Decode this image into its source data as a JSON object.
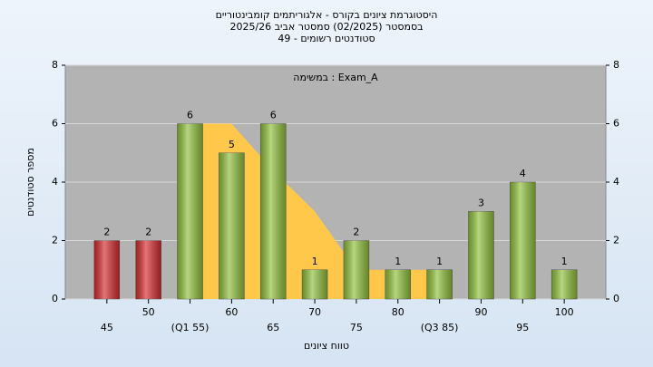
{
  "chart_data": {
    "type": "bar",
    "title": "היסטוגרמת ציונים בקורס - אלגוריתמים קומבינטוריים",
    "subtitle": "בסמסטר  (02/2025)  סמסטר אביב 2025/26",
    "subtitle2": "סטודנטים רשומים - 49",
    "annotation": "במשימה : Exam_A",
    "x_label": "טווח ציונים",
    "y_label": "מספר סטודנטים",
    "categories": [
      "45",
      "50",
      "(Q1 55)",
      "60",
      "65",
      "70",
      "75",
      "80",
      "(Q3 85)",
      "90",
      "95",
      "100"
    ],
    "values": [
      2,
      2,
      6,
      5,
      6,
      1,
      2,
      1,
      1,
      3,
      4,
      1
    ],
    "colors": [
      "#d42a2e",
      "#d42a2e",
      "#8fbf3a",
      "#8fbf3a",
      "#8fbf3a",
      "#8fbf3a",
      "#8fbf3a",
      "#8fbf3a",
      "#8fbf3a",
      "#8fbf3a",
      "#8fbf3a",
      "#8fbf3a"
    ],
    "area": {
      "color": "#ffc84a",
      "values": [
        null,
        null,
        6,
        6,
        4.4,
        3,
        1,
        1,
        1,
        null,
        null,
        null
      ]
    },
    "ylim": [
      0,
      8
    ],
    "yticks": [
      0,
      2,
      4,
      6,
      8
    ],
    "y2lim": [
      0,
      8
    ],
    "y2ticks": [
      0,
      2,
      4,
      6,
      8
    ],
    "grid": true
  }
}
